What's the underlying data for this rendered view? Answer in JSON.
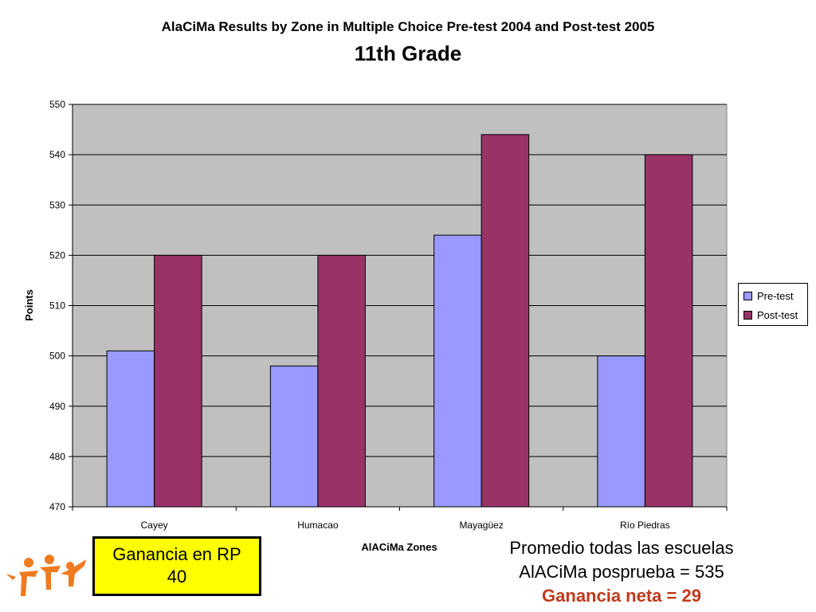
{
  "header": {
    "title": "AlaCiMa Results by Zone in Multiple Choice Pre-test 2004 and Post-test 2005",
    "subtitle": "11th Grade"
  },
  "colors": {
    "pre": "#9999ff",
    "post": "#993366",
    "plot_bg": "#c0c0c0",
    "gain_box": "#ffff00",
    "net_gain": "#c0391b",
    "logo": "#f07a1e"
  },
  "chart_data": {
    "type": "bar",
    "title": "AlaCiMa Results by Zone in Multiple Choice Pre-test 2004 and Post-test 2005",
    "subtitle": "11th Grade",
    "categories": [
      "Cayey",
      "Humacao",
      "Mayagüez",
      "Río Piedras"
    ],
    "series": [
      {
        "name": "Pre-test",
        "values": [
          501,
          498,
          524,
          500
        ]
      },
      {
        "name": "Post-test",
        "values": [
          520,
          520,
          544,
          540
        ]
      }
    ],
    "xlabel": "AlACiMa Zones",
    "ylabel": "Points",
    "ylim": [
      470,
      550
    ],
    "yticks": [
      470,
      480,
      490,
      500,
      510,
      520,
      530,
      540,
      550
    ],
    "grid": true,
    "legend": "right"
  },
  "annotations": {
    "gain_box": {
      "line1": "Ganancia en RP",
      "line2": "40"
    },
    "summary": {
      "line1": "Promedio todas las escuelas",
      "line2": "AlACiMa posprueba = 535",
      "line3": "Ganancia neta = 29"
    }
  },
  "logo_icon": "people-figures-icon"
}
